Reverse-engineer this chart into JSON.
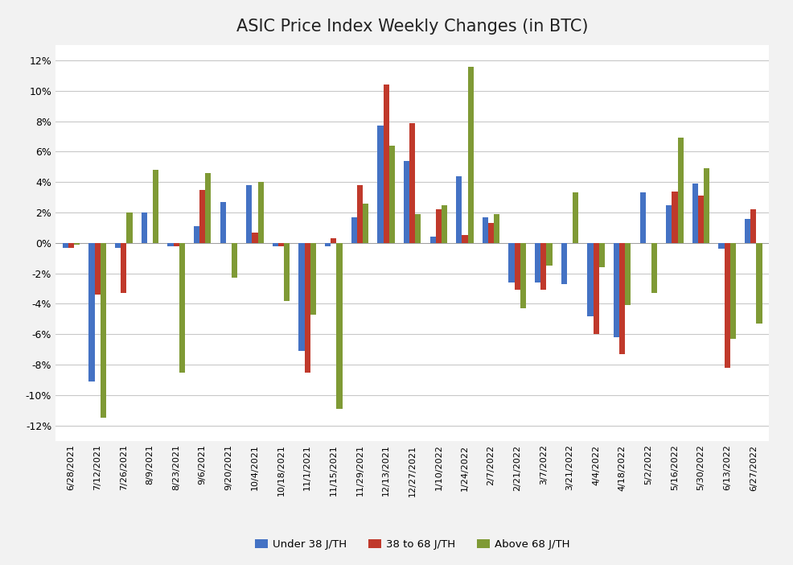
{
  "title": "ASIC Price Index Weekly Changes (in BTC)",
  "categories": [
    "6/28/2021",
    "7/12/2021",
    "7/26/2021",
    "8/9/2021",
    "8/23/2021",
    "9/6/2021",
    "9/20/2021",
    "10/4/2021",
    "10/18/2021",
    "11/1/2021",
    "11/15/2021",
    "11/29/2021",
    "12/13/2021",
    "12/27/2021",
    "1/10/2022",
    "1/24/2022",
    "2/7/2022",
    "2/21/2022",
    "3/7/2022",
    "3/21/2022",
    "4/4/2022",
    "4/18/2022",
    "5/2/2022",
    "5/16/2022",
    "5/30/2022",
    "6/13/2022",
    "6/27/2022"
  ],
  "series": {
    "Under 38 J/TH": [
      -0.003,
      -0.091,
      -0.003,
      0.02,
      -0.002,
      0.011,
      0.027,
      0.038,
      -0.002,
      -0.071,
      -0.002,
      0.017,
      0.077,
      0.054,
      0.004,
      0.044,
      0.017,
      -0.026,
      -0.026,
      -0.027,
      -0.048,
      -0.062,
      0.033,
      0.025,
      0.039,
      -0.004,
      0.016
    ],
    "38 to 68 J/TH": [
      -0.003,
      -0.034,
      -0.033,
      0.0,
      -0.002,
      0.035,
      0.0,
      0.007,
      -0.002,
      -0.085,
      0.003,
      0.038,
      0.104,
      0.079,
      0.022,
      0.005,
      0.013,
      -0.031,
      -0.031,
      0.0,
      -0.06,
      -0.073,
      0.0,
      0.034,
      0.031,
      -0.082,
      0.022
    ],
    "Above 68 J/TH": [
      -0.001,
      -0.115,
      0.02,
      0.048,
      -0.085,
      0.046,
      -0.023,
      0.04,
      -0.038,
      -0.047,
      -0.109,
      0.026,
      0.064,
      0.019,
      0.025,
      0.116,
      0.019,
      -0.043,
      -0.015,
      0.033,
      -0.016,
      -0.041,
      -0.033,
      0.069,
      0.049,
      -0.063,
      -0.053
    ]
  },
  "bar_colors": [
    "#4472c4",
    "#c0392b",
    "#7f9a35"
  ],
  "legend_labels": [
    "Under 38 J/TH",
    "38 to 68 J/TH",
    "Above 68 J/TH"
  ],
  "ylim": [
    -0.13,
    0.13
  ],
  "yticks": [
    -0.12,
    -0.1,
    -0.08,
    -0.06,
    -0.04,
    -0.02,
    0.0,
    0.02,
    0.04,
    0.06,
    0.08,
    0.1,
    0.12
  ],
  "background_color": "#f2f2f2",
  "plot_bg_color": "#ffffff",
  "grid_color": "#c8c8c8",
  "title_fontsize": 15,
  "bar_width": 0.22
}
